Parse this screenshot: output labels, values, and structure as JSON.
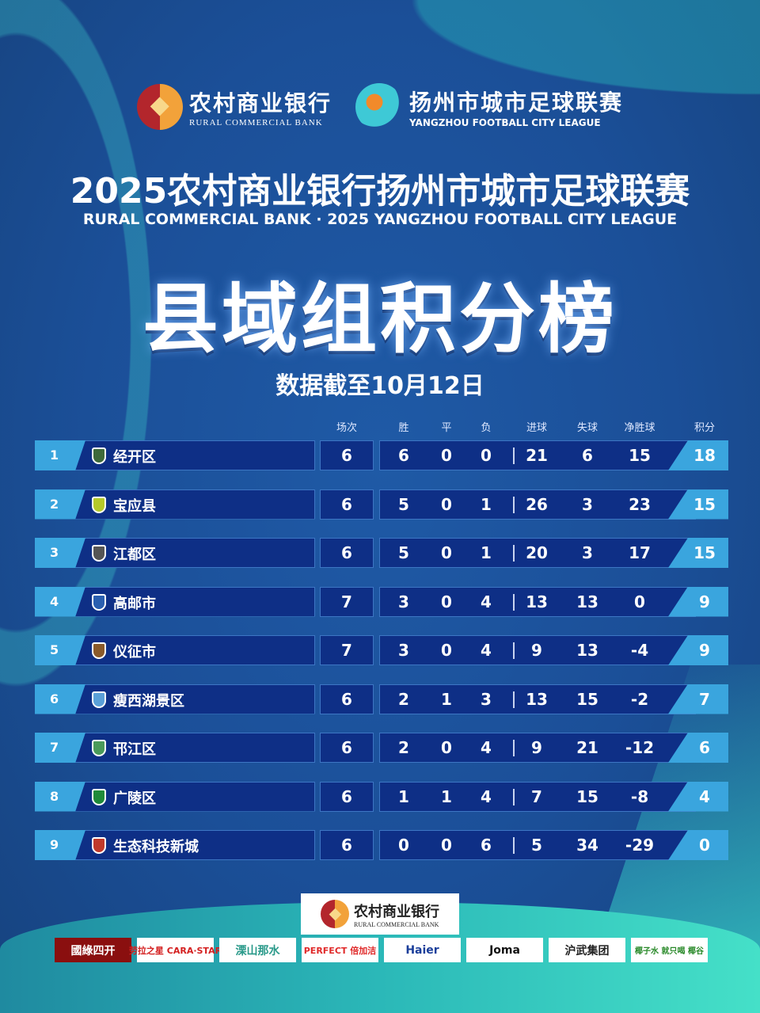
{
  "sponsor_top": {
    "bank_cn": "农村商业银行",
    "bank_en": "RURAL COMMERCIAL BANK",
    "league_cn": "扬州市城市足球联赛",
    "league_en": "YANGZHOU FOOTBALL CITY LEAGUE"
  },
  "title": "2025农村商业银行扬州市城市足球联赛",
  "subtitle": "RURAL COMMERCIAL BANK · 2025 YANGZHOU FOOTBALL CITY LEAGUE",
  "heading": "县域组积分榜",
  "date": "数据截至10月12日",
  "columns": [
    "场次",
    "胜",
    "平",
    "负",
    "进球",
    "失球",
    "净胜球",
    "积分"
  ],
  "teams": [
    {
      "rank": "1",
      "name": "经开区",
      "played": "6",
      "w": "6",
      "d": "0",
      "l": "0",
      "gf": "21",
      "ga": "6",
      "gd": "15",
      "pts": "18",
      "badge": "#3e6a3a"
    },
    {
      "rank": "2",
      "name": "宝应县",
      "played": "6",
      "w": "5",
      "d": "0",
      "l": "1",
      "gf": "26",
      "ga": "3",
      "gd": "23",
      "pts": "15",
      "badge": "#b5c92a"
    },
    {
      "rank": "3",
      "name": "江都区",
      "played": "6",
      "w": "5",
      "d": "0",
      "l": "1",
      "gf": "20",
      "ga": "3",
      "gd": "17",
      "pts": "15",
      "badge": "#555555"
    },
    {
      "rank": "4",
      "name": "高邮市",
      "played": "7",
      "w": "3",
      "d": "0",
      "l": "4",
      "gf": "13",
      "ga": "13",
      "gd": "0",
      "pts": "9",
      "badge": "#2a5fb0"
    },
    {
      "rank": "5",
      "name": "仪征市",
      "played": "7",
      "w": "3",
      "d": "0",
      "l": "4",
      "gf": "9",
      "ga": "13",
      "gd": "-4",
      "pts": "9",
      "badge": "#8a5a2a"
    },
    {
      "rank": "6",
      "name": "瘦西湖景区",
      "played": "6",
      "w": "2",
      "d": "1",
      "l": "3",
      "gf": "13",
      "ga": "15",
      "gd": "-2",
      "pts": "7",
      "badge": "#5aa0d8"
    },
    {
      "rank": "7",
      "name": "邗江区",
      "played": "6",
      "w": "2",
      "d": "0",
      "l": "4",
      "gf": "9",
      "ga": "21",
      "gd": "-12",
      "pts": "6",
      "badge": "#4a9a5a"
    },
    {
      "rank": "8",
      "name": "广陵区",
      "played": "6",
      "w": "1",
      "d": "1",
      "l": "4",
      "gf": "7",
      "ga": "15",
      "gd": "-8",
      "pts": "4",
      "badge": "#1f8a3a"
    },
    {
      "rank": "9",
      "name": "生态科技新城",
      "played": "6",
      "w": "0",
      "d": "0",
      "l": "6",
      "gf": "5",
      "ga": "34",
      "gd": "-29",
      "pts": "0",
      "badge": "#c0392b"
    }
  ],
  "sponsors": [
    "國綠四开",
    "劳拉之星 CARA·STAR",
    "溧山那水",
    "PERFECT 倍加洁",
    "Haier",
    "Joma",
    "沪武集团",
    "椰子水 就只喝 椰谷"
  ]
}
